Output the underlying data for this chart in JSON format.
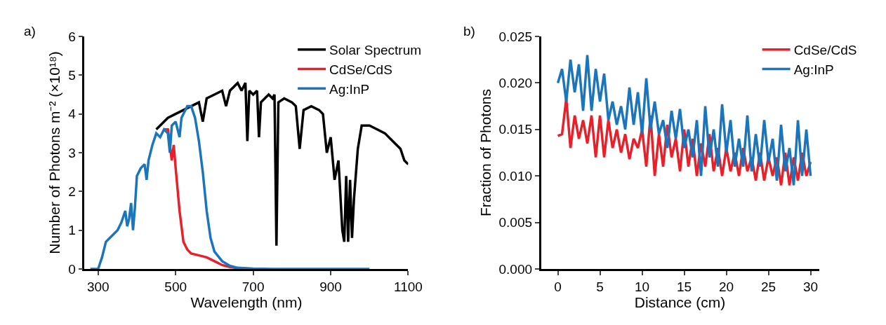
{
  "chart_data": [
    {
      "type": "line",
      "xlabel": "Wavelength (nm)",
      "ylabel": "Number of Photons m⁻² (×10¹⁸)",
      "annotations": [
        "a)"
      ],
      "xlim": [
        265,
        1100
      ],
      "xticks": [
        300,
        500,
        700,
        900,
        1100
      ],
      "ylim": [
        0,
        6
      ],
      "yticks": [
        0,
        1,
        2,
        3,
        4,
        5,
        6
      ],
      "legend": "top right",
      "series": [
        {
          "name": "Solar Spectrum",
          "color": "#000000",
          "x": [
            450,
            460,
            480,
            500,
            520,
            540,
            560,
            570,
            580,
            600,
            620,
            630,
            640,
            660,
            670,
            680,
            685,
            690,
            700,
            710,
            715,
            720,
            740,
            750,
            755,
            760,
            765,
            780,
            800,
            810,
            820,
            830,
            850,
            870,
            880,
            890,
            900,
            910,
            920,
            930,
            935,
            940,
            945,
            950,
            955,
            960,
            970,
            980,
            1000,
            1020,
            1040,
            1060,
            1080,
            1090,
            1100
          ],
          "values": [
            3.6,
            3.7,
            3.9,
            4.0,
            4.1,
            4.2,
            4.3,
            3.8,
            4.4,
            4.5,
            4.6,
            4.2,
            4.6,
            4.8,
            4.6,
            4.8,
            3.3,
            4.6,
            4.5,
            4.6,
            3.4,
            4.3,
            4.5,
            4.4,
            4.5,
            0.6,
            4.3,
            4.4,
            4.3,
            4.2,
            3.1,
            4.1,
            4.2,
            4.1,
            4.0,
            3.0,
            3.4,
            2.3,
            2.8,
            1.0,
            0.7,
            2.4,
            0.7,
            2.3,
            0.8,
            1.8,
            3.1,
            3.7,
            3.7,
            3.6,
            3.5,
            3.3,
            3.1,
            2.8,
            2.7
          ]
        },
        {
          "name": "CdSe/CdS",
          "color": "#e8202a",
          "x": [
            470,
            480,
            490,
            495,
            500,
            510,
            520,
            530,
            540,
            560,
            580,
            600,
            620,
            640,
            660
          ],
          "values": [
            3.6,
            3.6,
            2.8,
            3.2,
            2.6,
            1.5,
            0.7,
            0.5,
            0.4,
            0.35,
            0.3,
            0.2,
            0.1,
            0.05,
            0.02
          ]
        },
        {
          "name": "Ag:InP",
          "color": "#1a75bc",
          "x": [
            280,
            300,
            310,
            320,
            330,
            340,
            350,
            360,
            370,
            375,
            380,
            385,
            390,
            395,
            400,
            410,
            420,
            425,
            430,
            440,
            450,
            460,
            470,
            480,
            485,
            490,
            500,
            510,
            515,
            520,
            530,
            540,
            550,
            560,
            570,
            580,
            590,
            600,
            620,
            640,
            660,
            700,
            750,
            1000
          ],
          "values": [
            0,
            0,
            0.3,
            0.7,
            0.8,
            0.9,
            1.0,
            1.2,
            1.5,
            1.1,
            1.3,
            1.7,
            1.0,
            1.6,
            2.4,
            2.6,
            2.7,
            2.3,
            2.8,
            3.2,
            3.5,
            3.4,
            3.6,
            3.5,
            3.0,
            3.7,
            3.8,
            3.4,
            3.9,
            4.0,
            4.2,
            4.2,
            3.9,
            3.3,
            2.5,
            1.5,
            0.8,
            0.45,
            0.2,
            0.08,
            0.03,
            0.01,
            0,
            0
          ]
        }
      ]
    },
    {
      "type": "line",
      "xlabel": "Distance (cm)",
      "ylabel": "Fraction of Photons",
      "annotations": [
        "b)"
      ],
      "xlim": [
        -2,
        31
      ],
      "xticks": [
        0,
        5,
        10,
        15,
        20,
        25,
        30
      ],
      "ylim": [
        0,
        0.025
      ],
      "yticks": [
        {
          "value": 0,
          "label": "0.000"
        },
        {
          "value": 0.005,
          "label": "0.005"
        },
        {
          "value": 0.01,
          "label": "0.010"
        },
        {
          "value": 0.015,
          "label": "0.015"
        },
        {
          "value": 0.02,
          "label": "0.020"
        },
        {
          "value": 0.025,
          "label": "0.025"
        }
      ],
      "legend": "top right",
      "x": [
        0,
        0.5,
        1,
        1.5,
        2,
        2.5,
        3,
        3.5,
        4,
        4.5,
        5,
        5.5,
        6,
        6.5,
        7,
        7.5,
        8,
        8.5,
        9,
        9.5,
        10,
        10.5,
        11,
        11.5,
        12,
        12.5,
        13,
        13.5,
        14,
        14.5,
        15,
        15.5,
        16,
        16.5,
        17,
        17.5,
        18,
        18.5,
        19,
        19.5,
        20,
        20.5,
        21,
        21.5,
        22,
        22.5,
        23,
        23.5,
        24,
        24.5,
        25,
        25.5,
        26,
        26.5,
        27,
        27.5,
        28,
        28.5,
        29,
        29.5,
        30
      ],
      "series": [
        {
          "name": "CdSe/CdS",
          "color": "#e8202a",
          "values": [
            0.0143,
            0.0145,
            0.0183,
            0.013,
            0.0165,
            0.014,
            0.016,
            0.0135,
            0.0165,
            0.012,
            0.0165,
            0.012,
            0.016,
            0.013,
            0.015,
            0.0125,
            0.0145,
            0.0118,
            0.014,
            0.013,
            0.015,
            0.011,
            0.0165,
            0.01,
            0.0145,
            0.011,
            0.0155,
            0.012,
            0.014,
            0.0105,
            0.015,
            0.011,
            0.014,
            0.01,
            0.0135,
            0.011,
            0.0145,
            0.0105,
            0.013,
            0.01,
            0.013,
            0.0105,
            0.0125,
            0.01,
            0.013,
            0.0105,
            0.012,
            0.0095,
            0.0125,
            0.0095,
            0.012,
            0.01,
            0.012,
            0.009,
            0.0125,
            0.009,
            0.012,
            0.0095,
            0.0125,
            0.01,
            0.0115
          ]
        },
        {
          "name": "Ag:InP",
          "color": "#1a75bc",
          "values": [
            0.02,
            0.0215,
            0.018,
            0.0225,
            0.019,
            0.022,
            0.017,
            0.023,
            0.017,
            0.0215,
            0.018,
            0.021,
            0.016,
            0.018,
            0.0155,
            0.0175,
            0.015,
            0.0195,
            0.0155,
            0.019,
            0.0145,
            0.0205,
            0.015,
            0.018,
            0.0145,
            0.016,
            0.013,
            0.017,
            0.014,
            0.0172,
            0.013,
            0.015,
            0.012,
            0.016,
            0.01,
            0.0175,
            0.012,
            0.015,
            0.011,
            0.0177,
            0.0125,
            0.016,
            0.011,
            0.014,
            0.011,
            0.0165,
            0.0105,
            0.0145,
            0.011,
            0.016,
            0.0115,
            0.014,
            0.0095,
            0.0155,
            0.0105,
            0.013,
            0.009,
            0.016,
            0.01,
            0.015,
            0.01
          ]
        }
      ]
    }
  ]
}
